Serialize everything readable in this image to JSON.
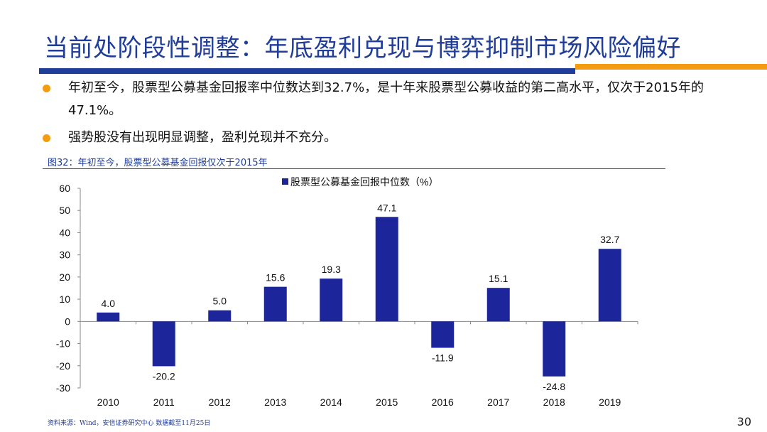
{
  "slide": {
    "title": "当前处阶段性调整：年底盈利兑现与博弈抑制市场风险偏好",
    "bullets": [
      "年初至今，股票型公募基金回报率中位数达到32.7%，是十年来股票型公募收益的第二高水平，仅次于2015年的47.1%。",
      "强势股没有出现明显调整，盈利兑现并不充分。"
    ],
    "figure_caption": "图32：年初至今，股票型公募基金回报仅次于2015年",
    "source": "资料来源：Wind，安信证券研究中心    数据截至11月25日",
    "page_number": "30",
    "colors": {
      "accent_blue": "#1f3d99",
      "accent_orange": "#f39c12",
      "bar": "#1c259a"
    }
  },
  "chart_data": {
    "type": "bar",
    "categories": [
      "2010",
      "2011",
      "2012",
      "2013",
      "2014",
      "2015",
      "2016",
      "2017",
      "2018",
      "2019"
    ],
    "series": [
      {
        "name": "股票型公募基金回报中位数（%）",
        "values": [
          4.0,
          -20.2,
          5.0,
          15.6,
          19.3,
          47.1,
          -11.9,
          15.1,
          -24.8,
          32.7
        ]
      }
    ],
    "data_labels": [
      "4.0",
      "-20.2",
      "5.0",
      "15.6",
      "19.3",
      "47.1",
      "-11.9",
      "15.1",
      "-24.8",
      "32.7"
    ],
    "y_ticks": [
      "60",
      "50",
      "40",
      "30",
      "20",
      "10",
      "0",
      "-10",
      "-20",
      "-30"
    ],
    "ylim": [
      -30,
      60
    ],
    "legend_position": "top-center",
    "grid": false
  }
}
